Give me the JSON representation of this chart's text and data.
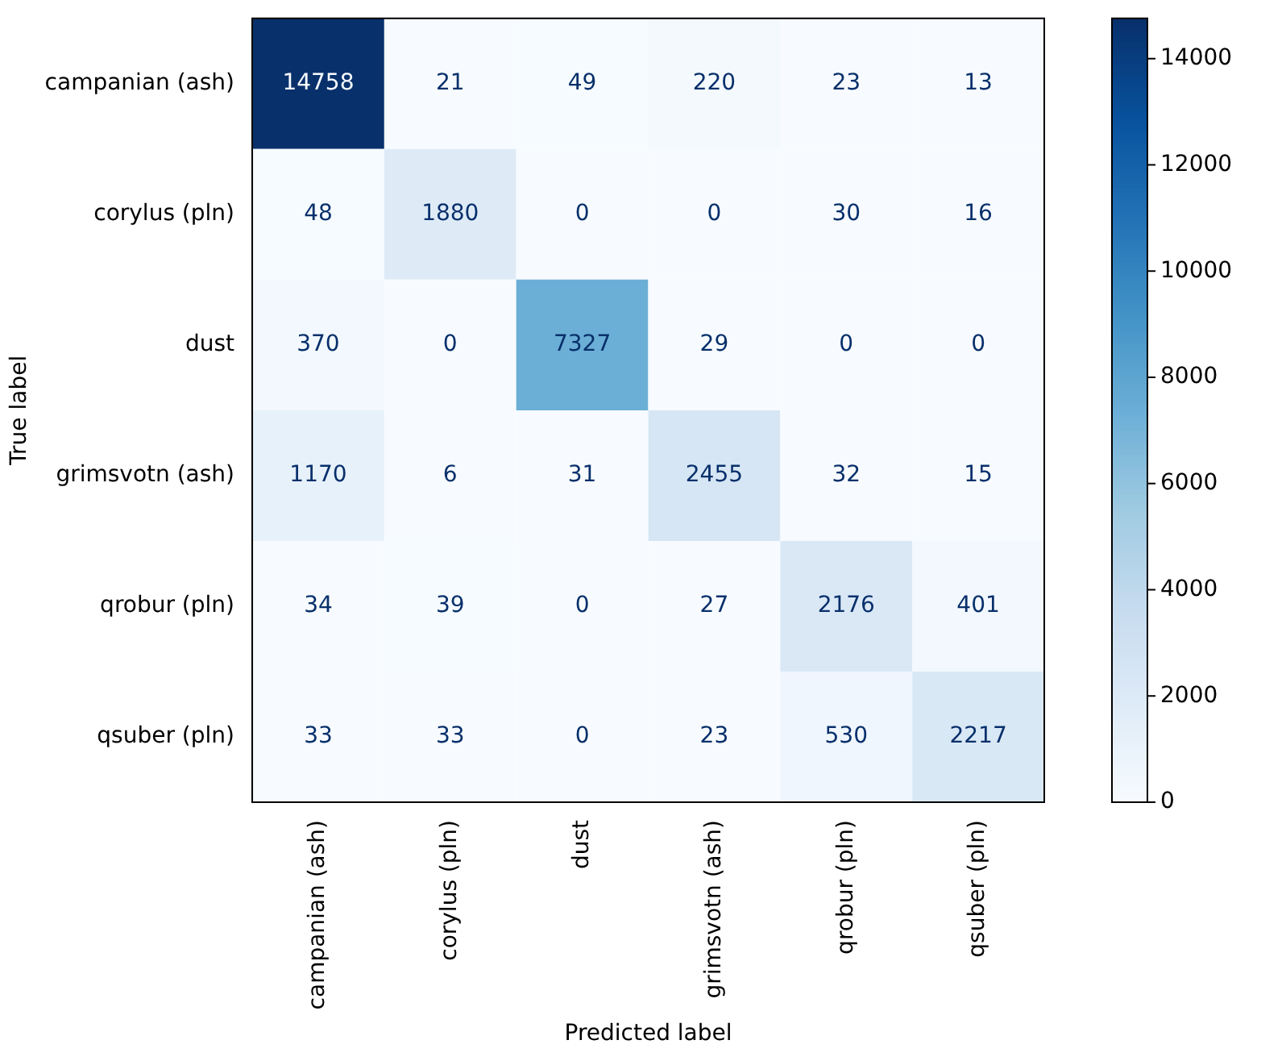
{
  "chart_data": {
    "type": "heatmap",
    "xlabel": "Predicted label",
    "ylabel": "True label",
    "categories": [
      "campanian (ash)",
      "corylus (pln)",
      "dust",
      "grimsvotn (ash)",
      "qrobur (pln)",
      "qsuber (pln)"
    ],
    "y_categories": [
      "campanian (ash)",
      "corylus (pln)",
      "dust",
      "grimsvotn (ash)",
      "qrobur (pln)",
      "qsuber (pln)"
    ],
    "cells": [
      [
        14758,
        21,
        49,
        220,
        23,
        13
      ],
      [
        48,
        1880,
        0,
        0,
        30,
        16
      ],
      [
        370,
        0,
        7327,
        29,
        0,
        0
      ],
      [
        1170,
        6,
        31,
        2455,
        32,
        15
      ],
      [
        34,
        39,
        0,
        27,
        2176,
        401
      ],
      [
        33,
        33,
        0,
        23,
        530,
        2217
      ]
    ],
    "data_labels": true,
    "clim": [
      0,
      14758
    ],
    "cticks": [
      0,
      2000,
      4000,
      6000,
      8000,
      10000,
      12000,
      14000
    ]
  }
}
